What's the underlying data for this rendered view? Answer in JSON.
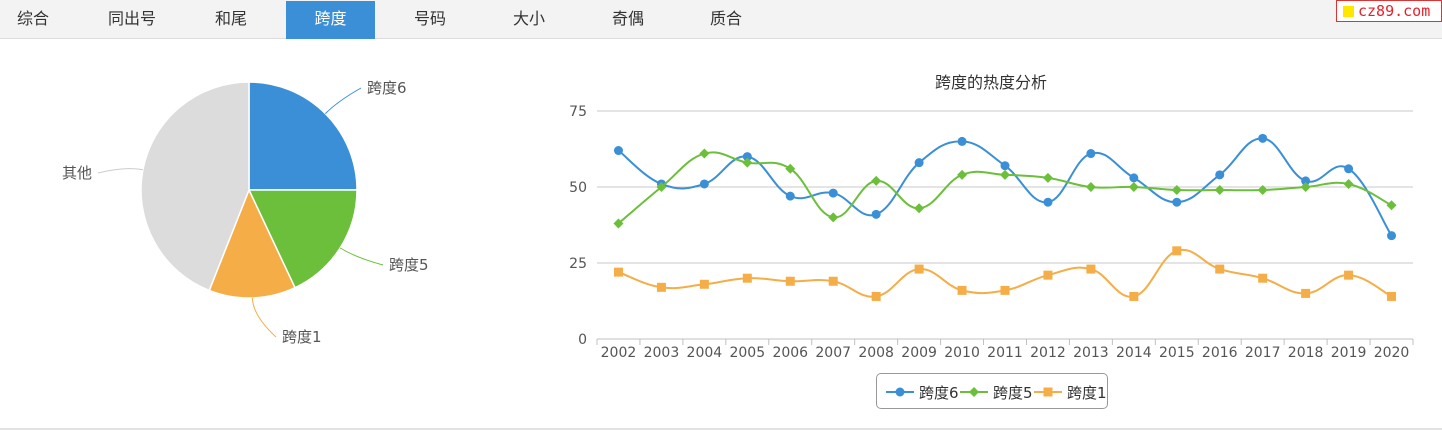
{
  "tabs": [
    {
      "label": "综合",
      "active": false
    },
    {
      "label": "同出号",
      "active": false
    },
    {
      "label": "和尾",
      "active": false
    },
    {
      "label": "跨度",
      "active": true
    },
    {
      "label": "号码",
      "active": false
    },
    {
      "label": "大小",
      "active": false
    },
    {
      "label": "奇偶",
      "active": false
    },
    {
      "label": "质合",
      "active": false
    }
  ],
  "brand": {
    "text": "cz89.com",
    "square_color": "#ffe800",
    "text_color": "#e8202a"
  },
  "colors": {
    "series1": "#3a8fd6",
    "series2": "#6bbf3a",
    "series3": "#f5ad47",
    "other": "#dcdcdc",
    "active_tab": "#3a8fd6"
  },
  "chart_data": [
    {
      "type": "pie",
      "slices": [
        {
          "name": "跨度6",
          "value": 25
        },
        {
          "name": "跨度5",
          "value": 18
        },
        {
          "name": "跨度1",
          "value": 13
        },
        {
          "name": "其他",
          "value": 44
        }
      ]
    },
    {
      "type": "line",
      "title": "跨度的热度分析",
      "categories": [
        "2002",
        "2003",
        "2004",
        "2005",
        "2006",
        "2007",
        "2008",
        "2009",
        "2010",
        "2011",
        "2012",
        "2013",
        "2014",
        "2015",
        "2016",
        "2017",
        "2018",
        "2019",
        "2020"
      ],
      "ylim": [
        0,
        75
      ],
      "yticks": [
        0,
        25,
        50,
        75
      ],
      "grid": true,
      "legend_position": "bottom",
      "series": [
        {
          "name": "跨度6",
          "marker": "circle",
          "values": [
            62,
            51,
            51,
            60,
            47,
            48,
            41,
            58,
            65,
            57,
            45,
            61,
            53,
            45,
            54,
            66,
            52,
            56,
            34
          ]
        },
        {
          "name": "跨度5",
          "marker": "diamond",
          "values": [
            38,
            50,
            61,
            58,
            56,
            40,
            52,
            43,
            54,
            54,
            53,
            50,
            50,
            49,
            49,
            49,
            50,
            51,
            44
          ]
        },
        {
          "name": "跨度1",
          "marker": "square",
          "values": [
            22,
            17,
            18,
            20,
            19,
            19,
            14,
            23,
            16,
            16,
            21,
            23,
            14,
            29,
            23,
            20,
            15,
            21,
            14
          ]
        }
      ]
    }
  ]
}
